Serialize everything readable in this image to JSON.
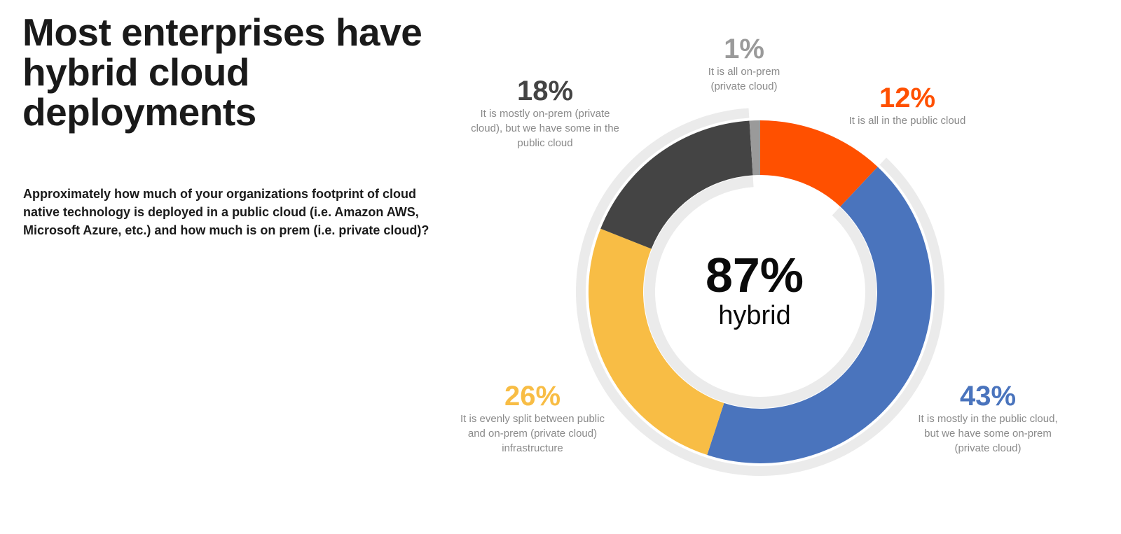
{
  "title": "Most enterprises have hybrid cloud deployments",
  "question": "Approximately how much of your organizations footprint of cloud native technology is deployed in a public cloud  (i.e. Amazon AWS, Microsoft Azure, etc.) and how much is on prem (i.e. private cloud)?",
  "chart_data": {
    "type": "pie",
    "variant": "donut",
    "center_value": "87%",
    "center_label": "hybrid",
    "highlight_color": "#ebebeb",
    "slices": [
      {
        "value": 12,
        "pct_label": "12%",
        "label": "It is all in the public cloud",
        "color": "#ff5000",
        "hybrid": false
      },
      {
        "value": 43,
        "pct_label": "43%",
        "label": "It is mostly in the public cloud, but we have some on-prem (private cloud)",
        "color": "#4a74bd",
        "hybrid": true
      },
      {
        "value": 26,
        "pct_label": "26%",
        "label": "It is evenly split between public and on-prem (private cloud) infrastructure",
        "color": "#f8bd45",
        "hybrid": true
      },
      {
        "value": 18,
        "pct_label": "18%",
        "label": "It is mostly on-prem (private cloud), but we have some in the public cloud",
        "color": "#444444",
        "hybrid": true
      },
      {
        "value": 1,
        "pct_label": "1%",
        "label": "It is all on-prem (private cloud)",
        "color": "#9a9a9a",
        "hybrid": false
      }
    ]
  }
}
